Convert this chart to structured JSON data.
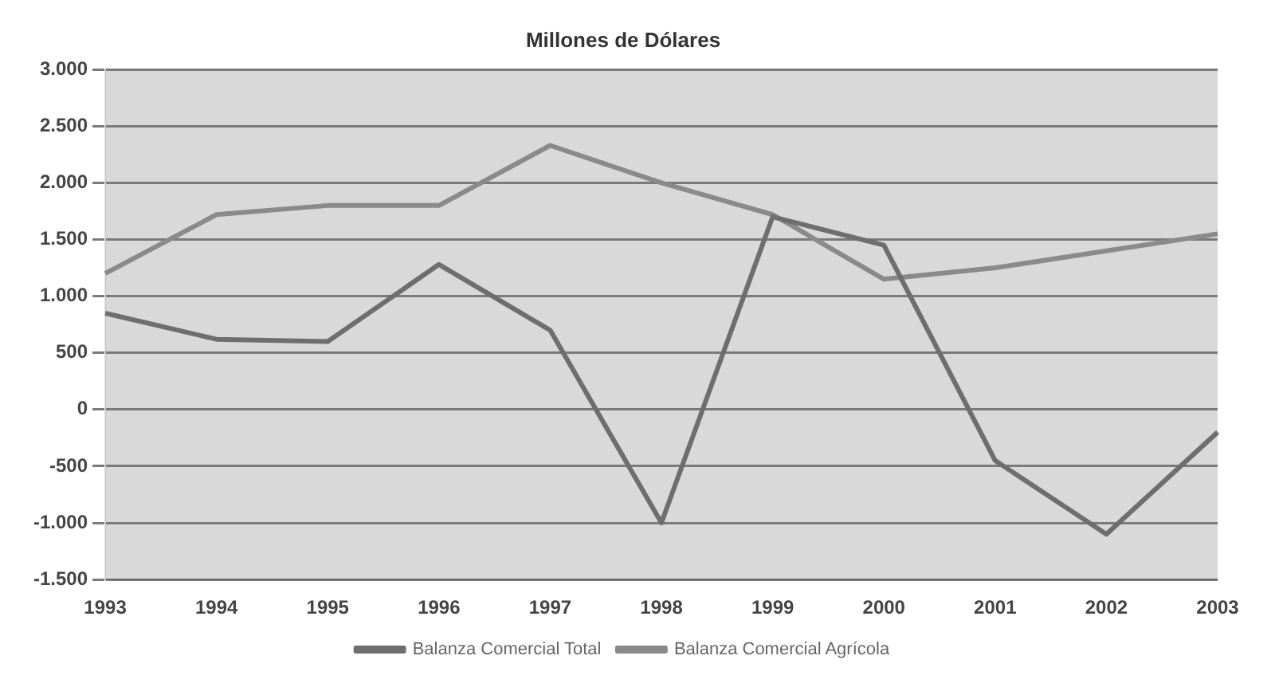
{
  "chart_data": {
    "type": "line",
    "title": "Millones de Dólares",
    "categories": [
      "1993",
      "1994",
      "1995",
      "1996",
      "1997",
      "1998",
      "1999",
      "2000",
      "2001",
      "2002",
      "2003"
    ],
    "series": [
      {
        "name": "Balanza Comercial Total",
        "color": "#6e6e6e",
        "values": [
          850,
          620,
          600,
          1280,
          700,
          -1000,
          1700,
          1450,
          -450,
          -1100,
          -200
        ]
      },
      {
        "name": "Balanza Comercial Agrícola",
        "color": "#8a8a8a",
        "values": [
          1200,
          1720,
          1800,
          1800,
          2330,
          2000,
          1720,
          1150,
          1250,
          1400,
          1550
        ]
      }
    ],
    "ylim": [
      -1500,
      3000
    ],
    "yticks": [
      {
        "value": -1500,
        "label": "-1.500"
      },
      {
        "value": -1000,
        "label": "-1.000"
      },
      {
        "value": -500,
        "label": "-500"
      },
      {
        "value": 0,
        "label": "0"
      },
      {
        "value": 500,
        "label": "500"
      },
      {
        "value": 1000,
        "label": "1.000"
      },
      {
        "value": 1500,
        "label": "1.500"
      },
      {
        "value": 2000,
        "label": "2.000"
      },
      {
        "value": 2500,
        "label": "2.500"
      },
      {
        "value": 3000,
        "label": "3.000"
      }
    ],
    "grid": "y",
    "legend": "bottom",
    "marker": "none",
    "line_style": "solid"
  }
}
